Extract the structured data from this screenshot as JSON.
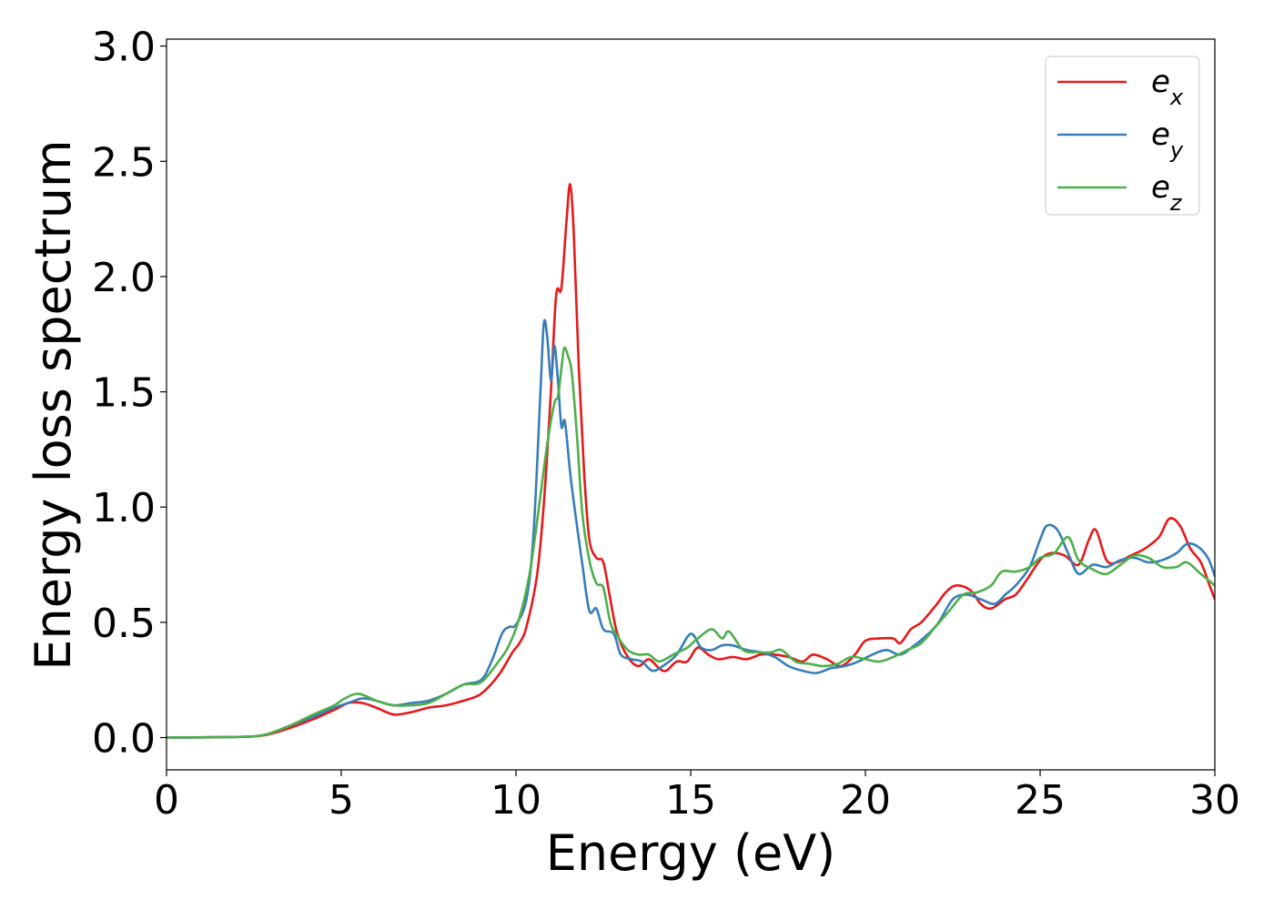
{
  "chart_data": {
    "type": "line",
    "xlabel": "Energy (eV)",
    "ylabel": "Energy loss spectrum",
    "xlim": [
      0,
      30
    ],
    "ylim": [
      -0.14,
      3.03
    ],
    "xticks": [
      0,
      5,
      10,
      15,
      20,
      25,
      30
    ],
    "yticks": [
      0.0,
      0.5,
      1.0,
      1.5,
      2.0,
      2.5,
      3.0
    ],
    "xtick_labels": [
      "0",
      "5",
      "10",
      "15",
      "20",
      "25",
      "30"
    ],
    "ytick_labels": [
      "0.0",
      "0.5",
      "1.0",
      "1.5",
      "2.0",
      "2.5",
      "3.0"
    ],
    "legend_position": "top-right",
    "grid": false,
    "series": [
      {
        "name": "e",
        "subscript": "x",
        "color": "#e41a1c",
        "points": [
          [
            0,
            0
          ],
          [
            2,
            0.003
          ],
          [
            2.8,
            0.01
          ],
          [
            3.5,
            0.04
          ],
          [
            4.2,
            0.08
          ],
          [
            4.8,
            0.12
          ],
          [
            5.2,
            0.15
          ],
          [
            5.6,
            0.15
          ],
          [
            6.0,
            0.13
          ],
          [
            6.5,
            0.1
          ],
          [
            7.0,
            0.11
          ],
          [
            7.5,
            0.13
          ],
          [
            8.0,
            0.14
          ],
          [
            8.5,
            0.16
          ],
          [
            9.0,
            0.19
          ],
          [
            9.5,
            0.27
          ],
          [
            9.9,
            0.37
          ],
          [
            10.1,
            0.41
          ],
          [
            10.3,
            0.48
          ],
          [
            10.6,
            0.7
          ],
          [
            10.8,
            1.02
          ],
          [
            11.0,
            1.5
          ],
          [
            11.15,
            1.92
          ],
          [
            11.3,
            1.95
          ],
          [
            11.45,
            2.25
          ],
          [
            11.55,
            2.4
          ],
          [
            11.65,
            2.2
          ],
          [
            11.8,
            1.6
          ],
          [
            11.95,
            1.15
          ],
          [
            12.1,
            0.86
          ],
          [
            12.3,
            0.78
          ],
          [
            12.5,
            0.76
          ],
          [
            12.7,
            0.6
          ],
          [
            12.9,
            0.45
          ],
          [
            13.2,
            0.35
          ],
          [
            13.5,
            0.31
          ],
          [
            13.8,
            0.34
          ],
          [
            14.1,
            0.3
          ],
          [
            14.3,
            0.29
          ],
          [
            14.6,
            0.33
          ],
          [
            14.9,
            0.33
          ],
          [
            15.2,
            0.39
          ],
          [
            15.5,
            0.36
          ],
          [
            15.8,
            0.34
          ],
          [
            16.2,
            0.35
          ],
          [
            16.6,
            0.34
          ],
          [
            17.0,
            0.36
          ],
          [
            17.4,
            0.36
          ],
          [
            17.8,
            0.35
          ],
          [
            18.2,
            0.33
          ],
          [
            18.5,
            0.36
          ],
          [
            18.9,
            0.34
          ],
          [
            19.3,
            0.31
          ],
          [
            19.7,
            0.36
          ],
          [
            20.0,
            0.42
          ],
          [
            20.4,
            0.43
          ],
          [
            20.8,
            0.43
          ],
          [
            21.0,
            0.41
          ],
          [
            21.3,
            0.47
          ],
          [
            21.6,
            0.5
          ],
          [
            22.0,
            0.57
          ],
          [
            22.3,
            0.63
          ],
          [
            22.6,
            0.66
          ],
          [
            23.0,
            0.64
          ],
          [
            23.3,
            0.58
          ],
          [
            23.6,
            0.56
          ],
          [
            24.0,
            0.6
          ],
          [
            24.3,
            0.62
          ],
          [
            24.6,
            0.68
          ],
          [
            25.0,
            0.77
          ],
          [
            25.3,
            0.8
          ],
          [
            25.7,
            0.79
          ],
          [
            26.1,
            0.75
          ],
          [
            26.4,
            0.86
          ],
          [
            26.6,
            0.9
          ],
          [
            26.9,
            0.77
          ],
          [
            27.2,
            0.76
          ],
          [
            27.6,
            0.79
          ],
          [
            28.0,
            0.82
          ],
          [
            28.4,
            0.87
          ],
          [
            28.7,
            0.95
          ],
          [
            29.0,
            0.92
          ],
          [
            29.3,
            0.82
          ],
          [
            29.6,
            0.76
          ],
          [
            29.85,
            0.66
          ],
          [
            30.0,
            0.6
          ]
        ]
      },
      {
        "name": "e",
        "subscript": "y",
        "color": "#377eb8",
        "points": [
          [
            0,
            0
          ],
          [
            2,
            0.003
          ],
          [
            2.8,
            0.012
          ],
          [
            3.5,
            0.05
          ],
          [
            4.2,
            0.09
          ],
          [
            4.8,
            0.13
          ],
          [
            5.2,
            0.15
          ],
          [
            5.6,
            0.17
          ],
          [
            6.0,
            0.16
          ],
          [
            6.5,
            0.14
          ],
          [
            7.0,
            0.15
          ],
          [
            7.5,
            0.16
          ],
          [
            8.0,
            0.19
          ],
          [
            8.5,
            0.23
          ],
          [
            9.0,
            0.25
          ],
          [
            9.3,
            0.33
          ],
          [
            9.6,
            0.45
          ],
          [
            9.8,
            0.48
          ],
          [
            10.0,
            0.49
          ],
          [
            10.3,
            0.6
          ],
          [
            10.5,
            0.88
          ],
          [
            10.7,
            1.5
          ],
          [
            10.8,
            1.8
          ],
          [
            10.9,
            1.73
          ],
          [
            11.0,
            1.55
          ],
          [
            11.1,
            1.7
          ],
          [
            11.2,
            1.55
          ],
          [
            11.3,
            1.35
          ],
          [
            11.4,
            1.37
          ],
          [
            11.55,
            1.15
          ],
          [
            11.7,
            0.97
          ],
          [
            11.9,
            0.75
          ],
          [
            12.1,
            0.55
          ],
          [
            12.3,
            0.56
          ],
          [
            12.5,
            0.47
          ],
          [
            12.8,
            0.45
          ],
          [
            13.0,
            0.36
          ],
          [
            13.3,
            0.34
          ],
          [
            13.6,
            0.33
          ],
          [
            13.9,
            0.29
          ],
          [
            14.2,
            0.31
          ],
          [
            14.6,
            0.36
          ],
          [
            15.0,
            0.45
          ],
          [
            15.3,
            0.39
          ],
          [
            15.6,
            0.38
          ],
          [
            15.9,
            0.4
          ],
          [
            16.2,
            0.4
          ],
          [
            16.6,
            0.38
          ],
          [
            17.0,
            0.37
          ],
          [
            17.4,
            0.35
          ],
          [
            17.8,
            0.31
          ],
          [
            18.2,
            0.29
          ],
          [
            18.6,
            0.28
          ],
          [
            19.0,
            0.3
          ],
          [
            19.4,
            0.31
          ],
          [
            19.8,
            0.33
          ],
          [
            20.2,
            0.36
          ],
          [
            20.6,
            0.38
          ],
          [
            21.0,
            0.36
          ],
          [
            21.4,
            0.4
          ],
          [
            21.8,
            0.45
          ],
          [
            22.1,
            0.5
          ],
          [
            22.5,
            0.6
          ],
          [
            22.9,
            0.62
          ],
          [
            23.3,
            0.6
          ],
          [
            23.7,
            0.58
          ],
          [
            24.0,
            0.62
          ],
          [
            24.3,
            0.66
          ],
          [
            24.7,
            0.74
          ],
          [
            25.0,
            0.86
          ],
          [
            25.2,
            0.92
          ],
          [
            25.5,
            0.9
          ],
          [
            25.8,
            0.8
          ],
          [
            26.1,
            0.71
          ],
          [
            26.5,
            0.75
          ],
          [
            26.9,
            0.74
          ],
          [
            27.3,
            0.77
          ],
          [
            27.7,
            0.78
          ],
          [
            28.1,
            0.76
          ],
          [
            28.5,
            0.77
          ],
          [
            28.9,
            0.8
          ],
          [
            29.2,
            0.84
          ],
          [
            29.5,
            0.83
          ],
          [
            29.8,
            0.78
          ],
          [
            30.0,
            0.7
          ]
        ]
      },
      {
        "name": "e",
        "subscript": "z",
        "color": "#4daf4a",
        "points": [
          [
            0,
            0
          ],
          [
            2,
            0.003
          ],
          [
            2.8,
            0.012
          ],
          [
            3.5,
            0.05
          ],
          [
            4.2,
            0.1
          ],
          [
            4.8,
            0.14
          ],
          [
            5.1,
            0.17
          ],
          [
            5.5,
            0.19
          ],
          [
            6.0,
            0.16
          ],
          [
            6.5,
            0.14
          ],
          [
            7.0,
            0.14
          ],
          [
            7.5,
            0.15
          ],
          [
            8.0,
            0.19
          ],
          [
            8.5,
            0.23
          ],
          [
            9.0,
            0.24
          ],
          [
            9.5,
            0.33
          ],
          [
            9.8,
            0.4
          ],
          [
            10.1,
            0.52
          ],
          [
            10.4,
            0.72
          ],
          [
            10.7,
            1.05
          ],
          [
            10.9,
            1.28
          ],
          [
            11.1,
            1.45
          ],
          [
            11.2,
            1.48
          ],
          [
            11.3,
            1.6
          ],
          [
            11.38,
            1.69
          ],
          [
            11.5,
            1.65
          ],
          [
            11.6,
            1.58
          ],
          [
            11.75,
            1.3
          ],
          [
            11.9,
            0.97
          ],
          [
            12.1,
            0.77
          ],
          [
            12.3,
            0.67
          ],
          [
            12.5,
            0.65
          ],
          [
            12.7,
            0.5
          ],
          [
            12.9,
            0.44
          ],
          [
            13.2,
            0.38
          ],
          [
            13.5,
            0.36
          ],
          [
            13.8,
            0.36
          ],
          [
            14.1,
            0.33
          ],
          [
            14.5,
            0.36
          ],
          [
            14.9,
            0.39
          ],
          [
            15.2,
            0.43
          ],
          [
            15.6,
            0.47
          ],
          [
            15.9,
            0.43
          ],
          [
            16.1,
            0.46
          ],
          [
            16.5,
            0.38
          ],
          [
            16.9,
            0.37
          ],
          [
            17.3,
            0.37
          ],
          [
            17.6,
            0.38
          ],
          [
            18.0,
            0.33
          ],
          [
            18.4,
            0.32
          ],
          [
            18.8,
            0.31
          ],
          [
            19.2,
            0.32
          ],
          [
            19.6,
            0.35
          ],
          [
            20.0,
            0.34
          ],
          [
            20.4,
            0.33
          ],
          [
            20.8,
            0.35
          ],
          [
            21.2,
            0.38
          ],
          [
            21.6,
            0.41
          ],
          [
            22.0,
            0.48
          ],
          [
            22.4,
            0.55
          ],
          [
            22.8,
            0.62
          ],
          [
            23.2,
            0.63
          ],
          [
            23.6,
            0.66
          ],
          [
            23.9,
            0.72
          ],
          [
            24.3,
            0.72
          ],
          [
            24.7,
            0.74
          ],
          [
            25.0,
            0.78
          ],
          [
            25.4,
            0.8
          ],
          [
            25.8,
            0.87
          ],
          [
            26.1,
            0.77
          ],
          [
            26.5,
            0.73
          ],
          [
            26.9,
            0.71
          ],
          [
            27.3,
            0.75
          ],
          [
            27.7,
            0.79
          ],
          [
            28.1,
            0.78
          ],
          [
            28.5,
            0.74
          ],
          [
            28.9,
            0.74
          ],
          [
            29.2,
            0.76
          ],
          [
            29.6,
            0.71
          ],
          [
            30.0,
            0.66
          ]
        ]
      }
    ]
  }
}
